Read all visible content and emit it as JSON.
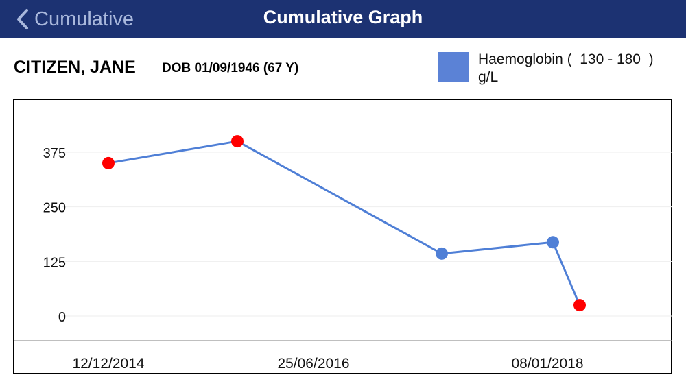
{
  "nav": {
    "back_label": "Cumulative",
    "title": "Cumulative Graph"
  },
  "patient": {
    "name": "CITIZEN, JANE",
    "dob": "DOB 01/09/1946 (67 Y)"
  },
  "legend": {
    "text": "Haemoglobin (  130 - 180  )\ng/L",
    "swatch_color": "#5b82d6"
  },
  "colors": {
    "nav_bg": "#1c3272",
    "line": "#4f7fd6",
    "normal_point": "#4f7fd6",
    "abnormal_point": "#ff0000"
  },
  "chart_data": {
    "type": "line",
    "title": "",
    "xlabel": "",
    "ylabel": "",
    "ylim": [
      0,
      440
    ],
    "yticks": [
      0,
      125,
      250,
      375
    ],
    "x_tick_labels": [
      "12/12/2014",
      "25/06/2016",
      "08/01/2018"
    ],
    "grid": true,
    "series": [
      {
        "name": "Haemoglobin",
        "points": [
          {
            "x": "12/12/2014",
            "y": 350,
            "abnormal": true
          },
          {
            "x": "2015-07",
            "y": 400,
            "abnormal": true
          },
          {
            "x": "2017-02",
            "y": 143,
            "abnormal": false
          },
          {
            "x": "2017-11",
            "y": 169,
            "abnormal": false
          },
          {
            "x": "2018-01",
            "y": 25,
            "abnormal": true
          }
        ]
      }
    ]
  }
}
